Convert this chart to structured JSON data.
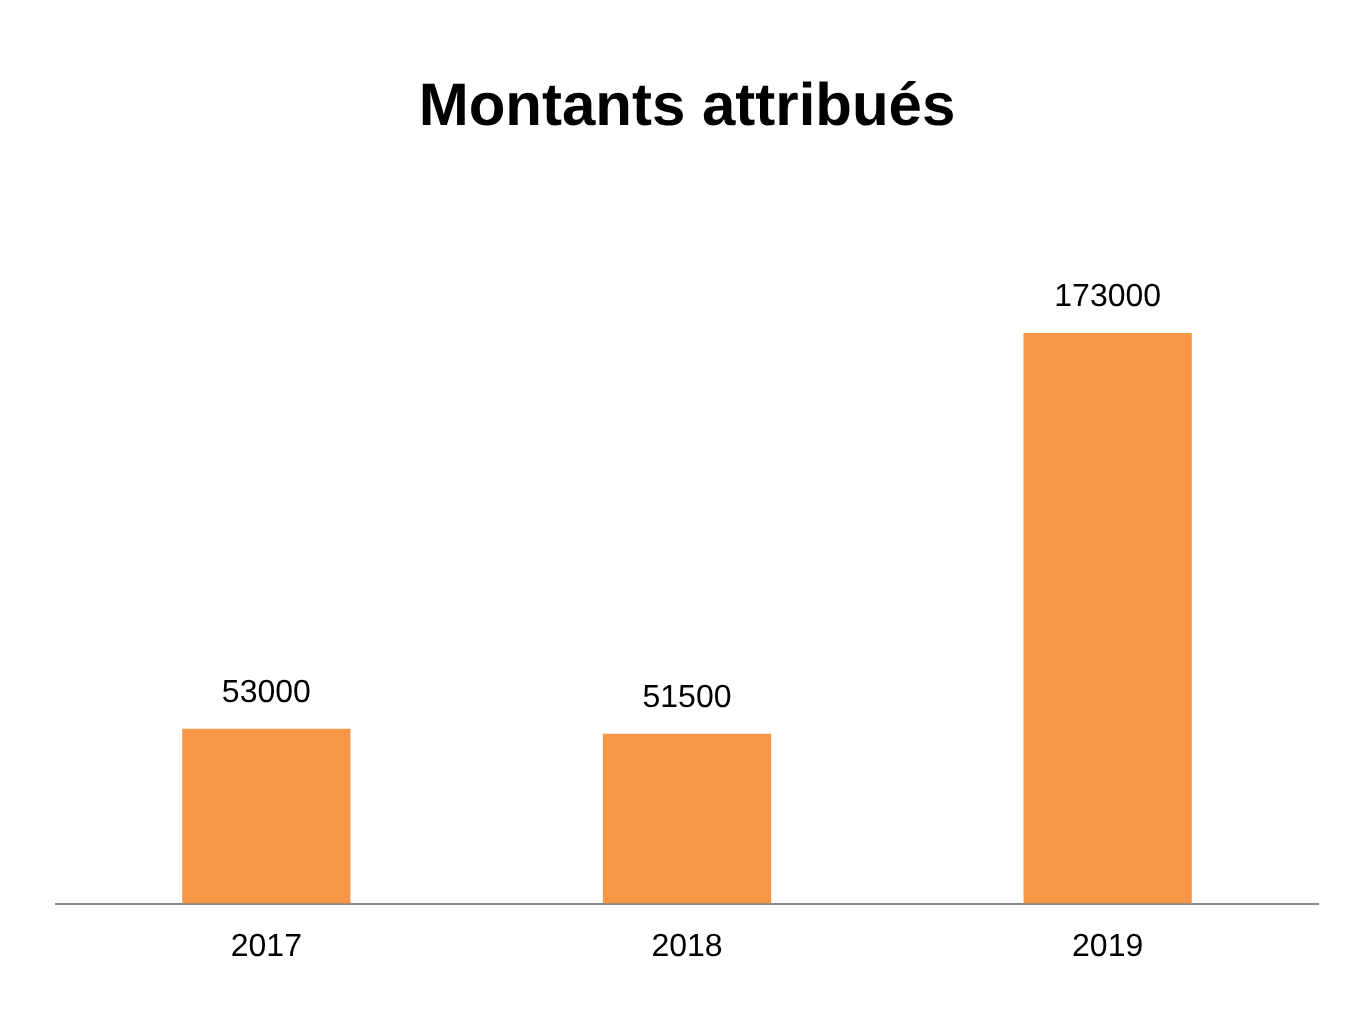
{
  "chart_data": {
    "type": "bar",
    "title": "Montants attribués",
    "categories": [
      "2017",
      "2018",
      "2019"
    ],
    "values": [
      53000,
      51500,
      173000
    ],
    "color": "#f79646",
    "data_labels": true,
    "grid": false,
    "legend": false
  }
}
